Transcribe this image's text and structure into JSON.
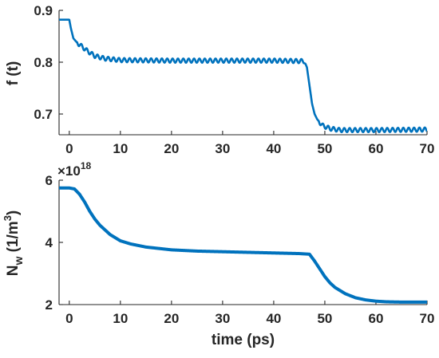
{
  "chart_data": [
    {
      "type": "line",
      "ylabel": "f (t)",
      "xlabel": "",
      "xlim": [
        -2,
        70
      ],
      "ylim": [
        0.66,
        0.9
      ],
      "xticks": [
        "0",
        "10",
        "20",
        "30",
        "40",
        "50",
        "60",
        "70"
      ],
      "yticks": [
        "0.7",
        "0.8",
        "0.9"
      ],
      "line_color": "#0072BD",
      "series": [
        {
          "x": [
            -2,
            0.0,
            0.3,
            0.8,
            1.5,
            2.5,
            3.5,
            5,
            7,
            10,
            20,
            30,
            40,
            46.0,
            46.5,
            47.0,
            47.5,
            48.0,
            48.5,
            49.5,
            51,
            53,
            60,
            70
          ],
          "values": [
            0.882,
            0.882,
            0.866,
            0.846,
            0.838,
            0.83,
            0.822,
            0.812,
            0.807,
            0.804,
            0.803,
            0.803,
            0.803,
            0.802,
            0.79,
            0.755,
            0.72,
            0.7,
            0.69,
            0.678,
            0.672,
            0.669,
            0.669,
            0.67
          ],
          "oscillation_amplitude": 0.004
        }
      ]
    },
    {
      "type": "line",
      "ylabel": "N_w (1/m^3)",
      "xlabel": "time (ps)",
      "xlim": [
        -2,
        70
      ],
      "ylim": [
        2,
        6
      ],
      "y_exponent": "18",
      "xticks": [
        "0",
        "10",
        "20",
        "30",
        "40",
        "50",
        "60",
        "70"
      ],
      "yticks": [
        "2",
        "4",
        "6"
      ],
      "line_color": "#0072BD",
      "series": [
        {
          "x": [
            -2,
            0.0,
            1,
            2,
            3,
            4,
            5,
            6,
            8,
            10,
            12,
            15,
            20,
            25,
            30,
            35,
            40,
            45,
            47.0,
            48,
            49,
            50,
            51,
            52,
            54,
            56,
            58,
            60,
            62,
            65,
            70
          ],
          "values": [
            5.75,
            5.75,
            5.72,
            5.55,
            5.3,
            5.0,
            4.75,
            4.55,
            4.25,
            4.05,
            3.95,
            3.85,
            3.76,
            3.72,
            3.7,
            3.68,
            3.66,
            3.64,
            3.62,
            3.4,
            3.15,
            2.9,
            2.7,
            2.55,
            2.35,
            2.22,
            2.15,
            2.11,
            2.09,
            2.08,
            2.08
          ]
        }
      ]
    }
  ]
}
